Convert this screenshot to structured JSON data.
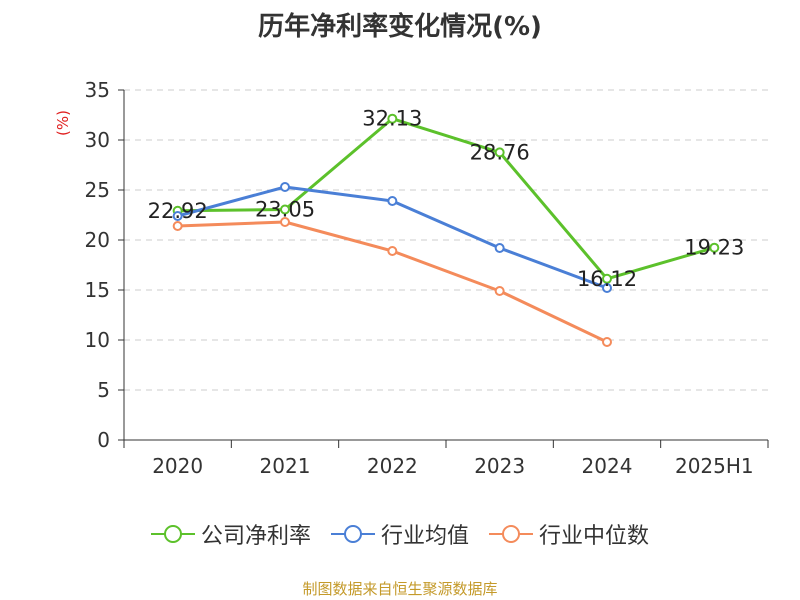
{
  "chart_data": {
    "type": "line",
    "title": "历年净利率变化情况(%)",
    "ylabel": "(%)",
    "categories": [
      "2020",
      "2021",
      "2022",
      "2023",
      "2024",
      "2025H1"
    ],
    "ylim": [
      0,
      35
    ],
    "yticks": [
      0,
      5,
      10,
      15,
      20,
      25,
      30,
      35
    ],
    "grid": true,
    "legend_position": "bottom",
    "series": [
      {
        "name": "公司净利率",
        "color": "#5cc12b",
        "values": [
          22.92,
          23.05,
          32.13,
          28.76,
          16.12,
          19.23
        ],
        "labels": [
          "22.92",
          "23.05",
          "32.13",
          "28.76",
          "16.12",
          "19.23"
        ]
      },
      {
        "name": "行业均值",
        "color": "#4a7fd6",
        "values": [
          22.4,
          25.3,
          23.9,
          19.2,
          15.2,
          null
        ]
      },
      {
        "name": "行业中位数",
        "color": "#f48b5b",
        "values": [
          21.4,
          21.8,
          18.9,
          14.9,
          9.8,
          null
        ]
      }
    ]
  },
  "footer": {
    "source": "制图数据来自恒生聚源数据库"
  }
}
